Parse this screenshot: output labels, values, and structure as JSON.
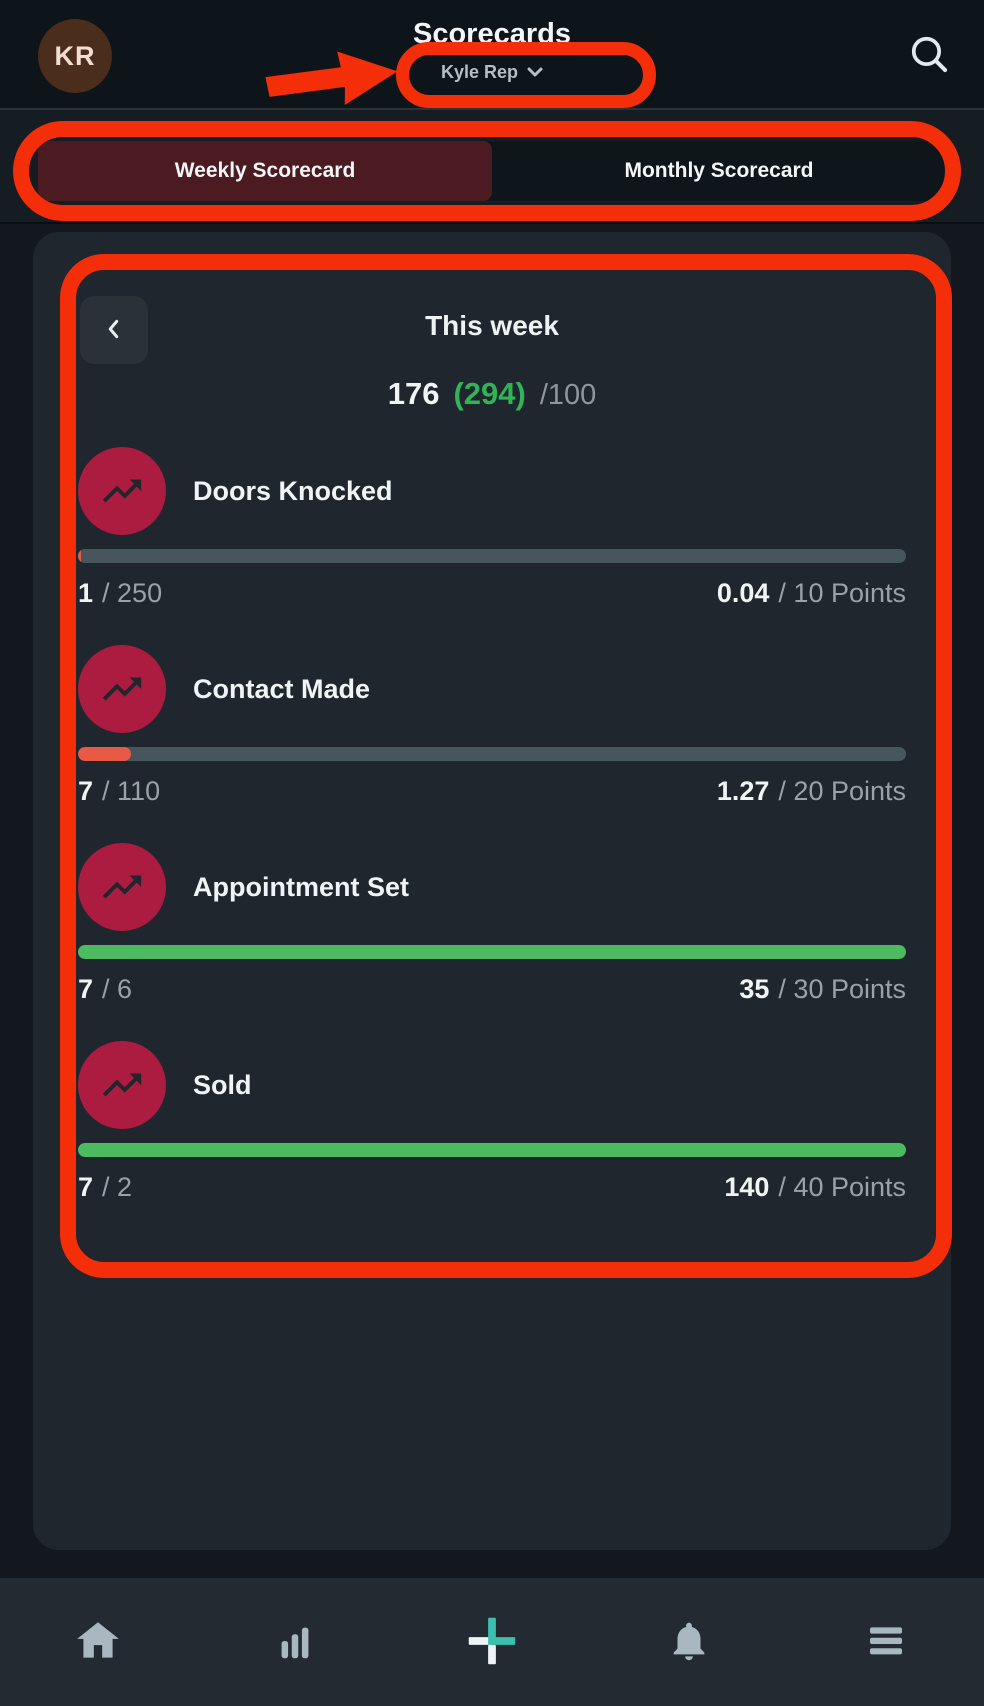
{
  "colors": {
    "annotation": "#f42e08",
    "accent-green": "#2fb457",
    "bar-track": "#47555c",
    "metric-icon-bg": "#ac1b40",
    "tab-active-bg": "#4c1a21",
    "avatar-bg": "#4b2d1c",
    "nav-plus-teal": "#3cbfae",
    "nav-icon": "#a9b7c0"
  },
  "header": {
    "avatar_initials": "KR",
    "title": "Scorecards",
    "user_selector_label": "Kyle Rep"
  },
  "tabs": [
    {
      "label": "Weekly Scorecard",
      "active": true
    },
    {
      "label": "Monthly Scorecard",
      "active": false
    }
  ],
  "scorecard": {
    "period_label": "This week",
    "score_current": "176",
    "score_potential": "(294)",
    "score_denominator": "/100",
    "metrics": [
      {
        "label": "Doors Knocked",
        "value": "1",
        "target": "/ 250",
        "points": "0.04",
        "points_total": "/ 10 Points",
        "progress_pct": 0.4,
        "bar_color": "#e85a43"
      },
      {
        "label": "Contact Made",
        "value": "7",
        "target": "/ 110",
        "points": "1.27",
        "points_total": "/ 20 Points",
        "progress_pct": 6.4,
        "bar_color": "#e85a43"
      },
      {
        "label": "Appointment Set",
        "value": "7",
        "target": "/ 6",
        "points": "35",
        "points_total": "/ 30 Points",
        "progress_pct": 100,
        "bar_color": "#4cbb5f"
      },
      {
        "label": "Sold",
        "value": "7",
        "target": "/ 2",
        "points": "140",
        "points_total": "/ 40 Points",
        "progress_pct": 100,
        "bar_color": "#4cbb5f"
      }
    ]
  },
  "nav": {
    "items": [
      "home-icon",
      "bar-chart-icon",
      "add-icon",
      "bell-icon",
      "menu-icon"
    ]
  }
}
